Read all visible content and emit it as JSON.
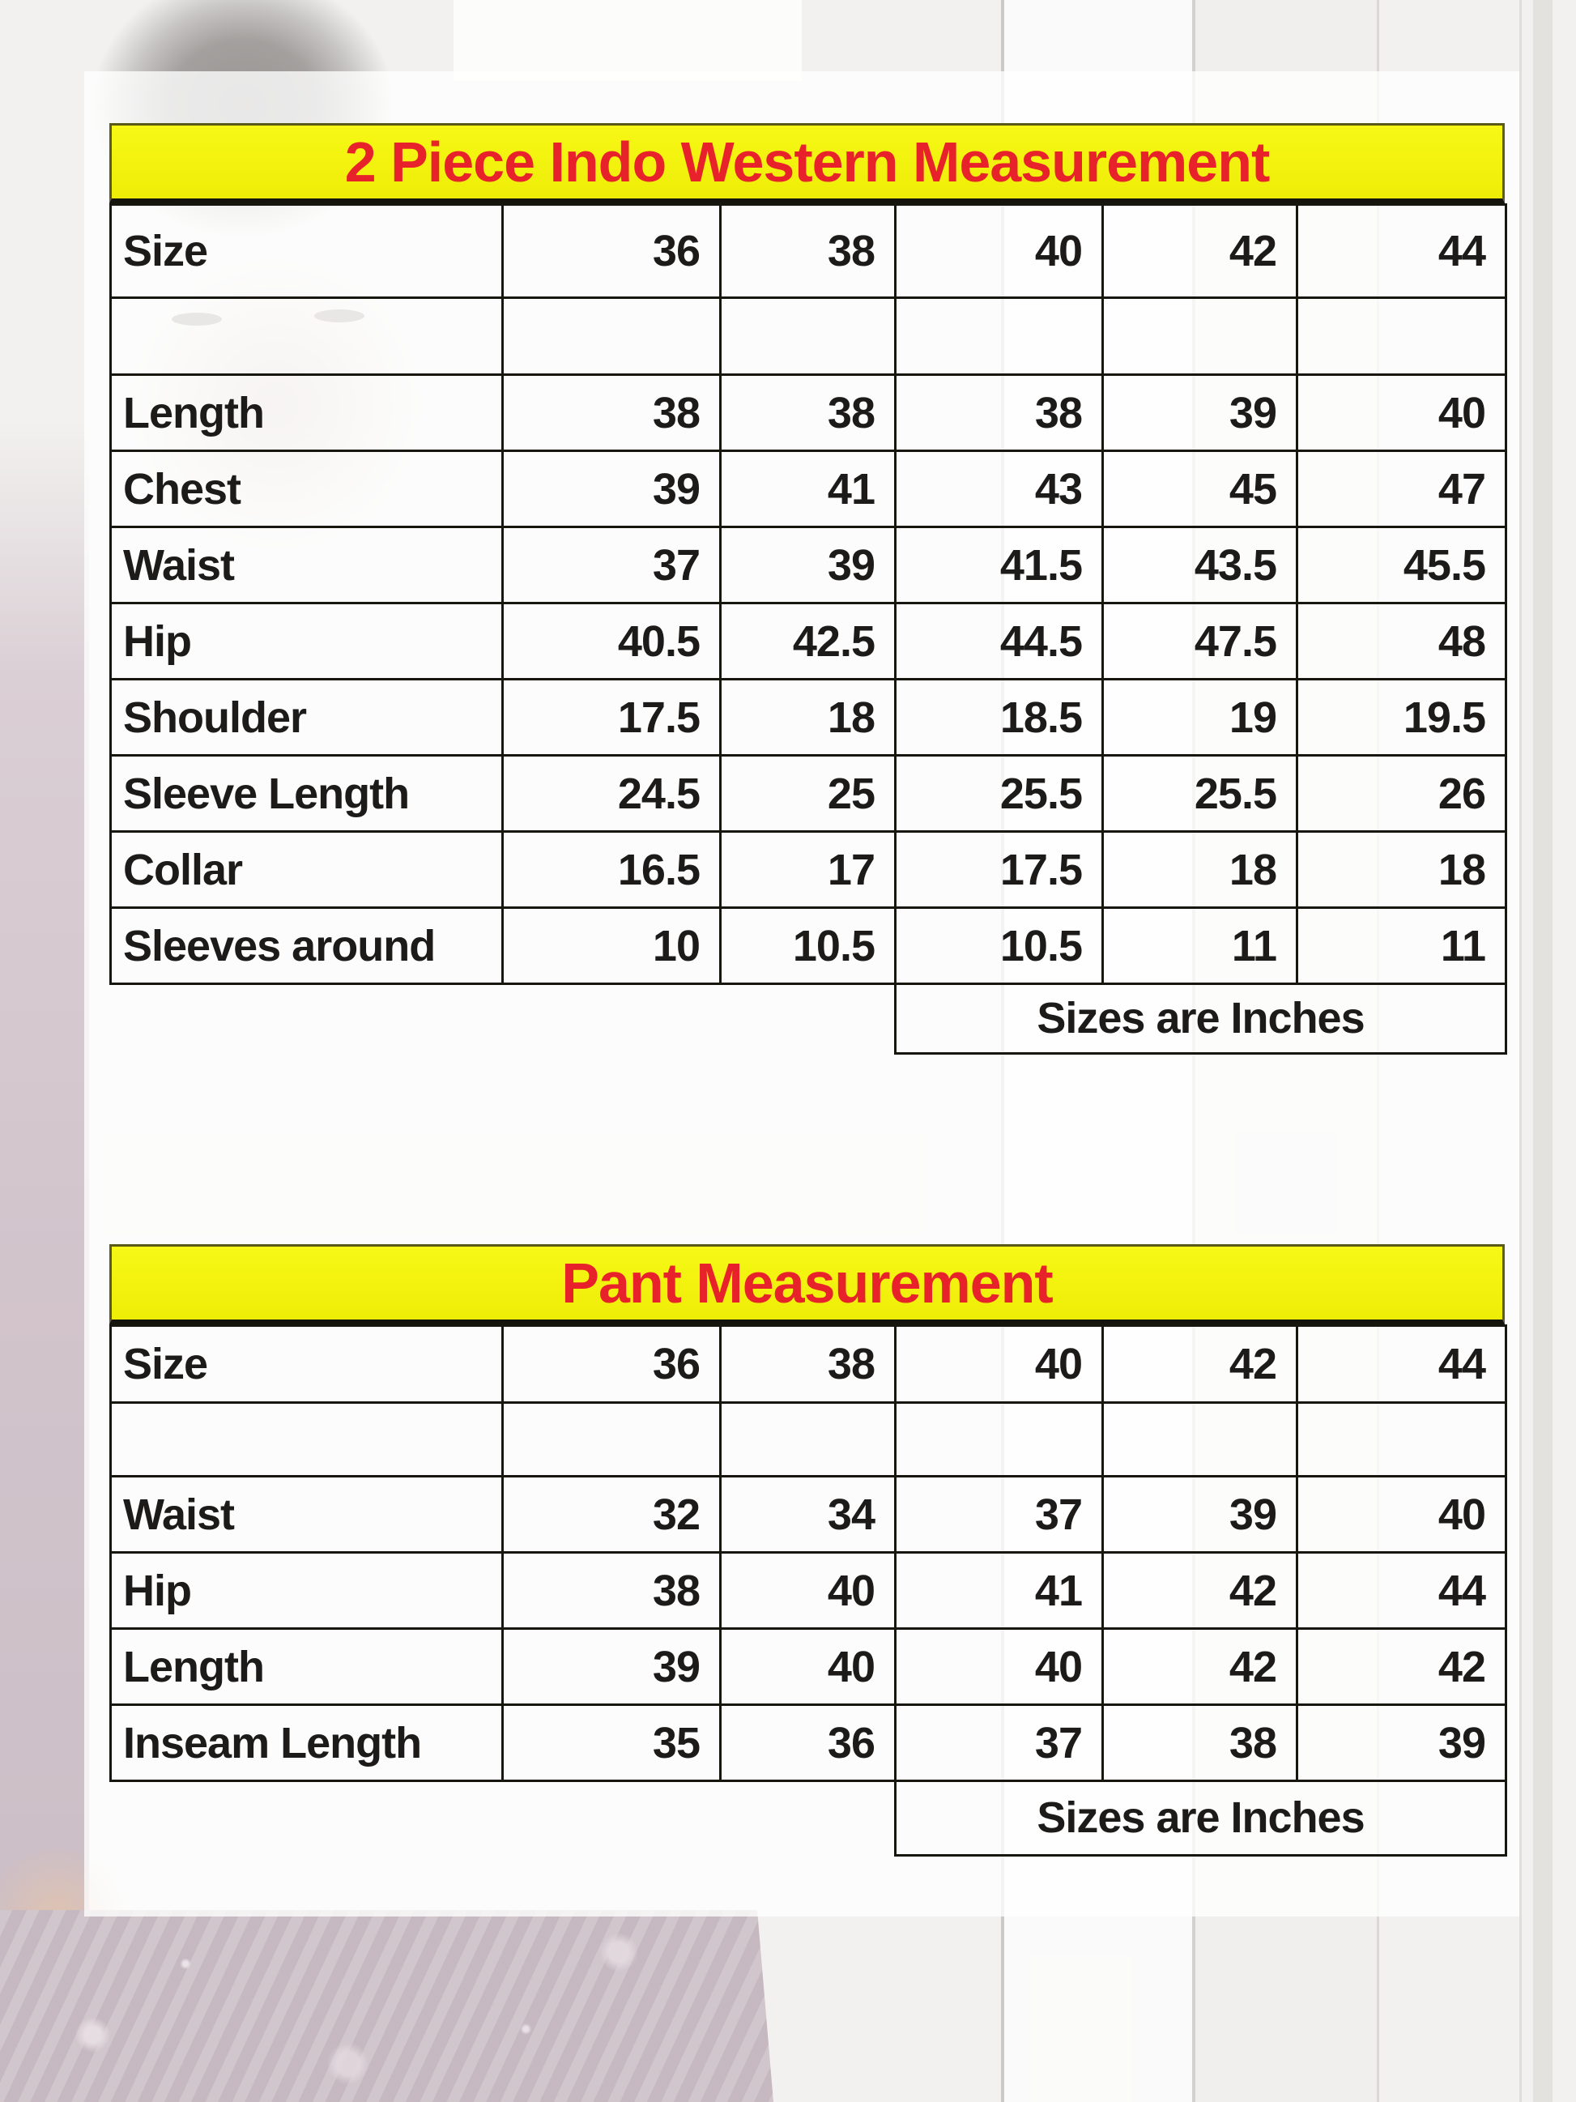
{
  "palette": {
    "title_bar_bg": "#eded08",
    "title_text": "#e8222a",
    "cell_text": "#1d1b1a",
    "grid_border": "#17170f",
    "garment_mauve": "#ccbfc6",
    "photo_background": "#f2f1ef"
  },
  "tables": [
    {
      "title": "2 Piece Indo Western Measurement",
      "size_label": "Size",
      "sizes": [
        "36",
        "38",
        "40",
        "42",
        "44"
      ],
      "rows": [
        {
          "label": "Length",
          "values": [
            "38",
            "38",
            "38",
            "39",
            "40"
          ]
        },
        {
          "label": "Chest",
          "values": [
            "39",
            "41",
            "43",
            "45",
            "47"
          ]
        },
        {
          "label": "Waist",
          "values": [
            "37",
            "39",
            "41.5",
            "43.5",
            "45.5"
          ]
        },
        {
          "label": "Hip",
          "values": [
            "40.5",
            "42.5",
            "44.5",
            "47.5",
            "48"
          ]
        },
        {
          "label": "Shoulder",
          "values": [
            "17.5",
            "18",
            "18.5",
            "19",
            "19.5"
          ]
        },
        {
          "label": "Sleeve Length",
          "values": [
            "24.5",
            "25",
            "25.5",
            "25.5",
            "26"
          ]
        },
        {
          "label": "Collar",
          "values": [
            "16.5",
            "17",
            "17.5",
            "18",
            "18"
          ]
        },
        {
          "label": "Sleeves around",
          "values": [
            "10",
            "10.5",
            "10.5",
            "11",
            "11"
          ]
        }
      ],
      "footnote": "Sizes are Inches"
    },
    {
      "title": "Pant Measurement",
      "size_label": "Size",
      "sizes": [
        "36",
        "38",
        "40",
        "42",
        "44"
      ],
      "rows": [
        {
          "label": "Waist",
          "values": [
            "32",
            "34",
            "37",
            "39",
            "40"
          ]
        },
        {
          "label": "Hip",
          "values": [
            "38",
            "40",
            "41",
            "42",
            "44"
          ]
        },
        {
          "label": "Length",
          "values": [
            "39",
            "40",
            "40",
            "42",
            "42"
          ]
        },
        {
          "label": "Inseam Length",
          "values": [
            "35",
            "36",
            "37",
            "38",
            "39"
          ]
        }
      ],
      "footnote": "Sizes are Inches"
    }
  ]
}
